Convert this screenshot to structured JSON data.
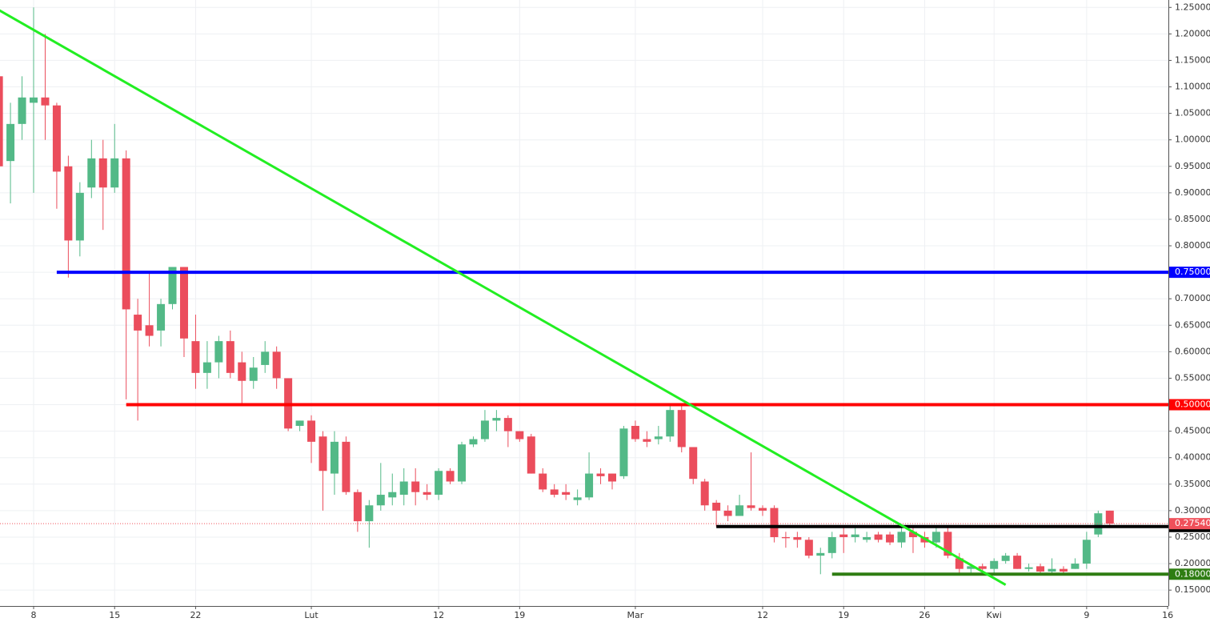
{
  "chart_data": {
    "type": "candlestick",
    "categories": [
      null,
      null,
      null,
      "8",
      null,
      null,
      null,
      null,
      null,
      null,
      "15",
      null,
      null,
      null,
      null,
      null,
      null,
      "22",
      null,
      null,
      null,
      null,
      null,
      null,
      null,
      null,
      null,
      "Lut",
      null,
      null,
      null,
      null,
      null,
      null,
      null,
      null,
      null,
      null,
      "12",
      null,
      null,
      null,
      null,
      null,
      null,
      "19",
      null,
      null,
      null,
      null,
      null,
      null,
      null,
      null,
      null,
      "Mar",
      null,
      null,
      null,
      null,
      null,
      null,
      null,
      null,
      null,
      null,
      "12",
      null,
      null,
      null,
      null,
      null,
      null,
      "19",
      null,
      null,
      null,
      null,
      null,
      null,
      "26",
      null,
      null,
      null,
      null,
      null,
      "Kwi",
      null,
      null,
      null,
      null,
      null,
      null,
      null,
      "9",
      null,
      null,
      null,
      null,
      null,
      null,
      "16"
    ],
    "open": [
      1.12,
      0.96,
      1.03,
      1.07,
      1.08,
      1.065,
      0.95,
      0.81,
      0.91,
      0.965,
      0.91,
      0.965,
      0.67,
      0.65,
      0.64,
      0.69,
      0.76,
      0.62,
      0.56,
      0.58,
      0.62,
      0.58,
      0.545,
      0.575,
      0.6,
      0.55,
      0.46,
      0.47,
      0.44,
      0.37,
      0.43,
      0.335,
      0.28,
      0.31,
      0.325,
      0.33,
      0.355,
      0.335,
      0.33,
      0.375,
      0.355,
      0.425,
      0.435,
      0.47,
      0.475,
      0.45,
      0.44,
      0.37,
      0.34,
      0.335,
      0.32,
      0.325,
      0.37,
      0.37,
      0.365,
      0.46,
      0.435,
      0.435,
      0.44,
      0.49,
      0.42,
      0.355,
      0.315,
      0.3,
      0.29,
      0.31,
      0.305,
      0.305,
      0.25,
      0.25,
      0.245,
      0.215,
      0.22,
      0.255,
      0.25,
      0.245,
      0.255,
      0.255,
      0.24,
      0.26,
      0.25,
      0.24,
      0.26,
      0.21,
      0.19,
      0.195,
      0.19,
      0.205,
      0.215,
      0.19,
      0.195,
      0.185,
      0.19,
      0.19,
      0.2,
      0.255,
      0.3,
      null,
      null,
      null,
      null,
      null
    ],
    "high": [
      1.12,
      1.07,
      1.12,
      1.25,
      1.2,
      1.07,
      0.97,
      0.92,
      1.0,
      1.0,
      1.03,
      0.98,
      0.7,
      0.75,
      0.7,
      0.76,
      0.76,
      0.67,
      0.62,
      0.63,
      0.64,
      0.6,
      0.59,
      0.62,
      0.61,
      0.55,
      0.47,
      0.48,
      0.45,
      0.45,
      0.44,
      0.34,
      0.32,
      0.39,
      0.37,
      0.38,
      0.38,
      0.35,
      0.38,
      0.38,
      0.43,
      0.44,
      0.49,
      0.49,
      0.48,
      0.45,
      0.445,
      0.38,
      0.35,
      0.35,
      0.34,
      0.41,
      0.38,
      0.37,
      0.46,
      0.47,
      0.45,
      0.46,
      0.5,
      0.5,
      0.42,
      0.36,
      0.32,
      0.31,
      0.33,
      0.41,
      0.31,
      0.31,
      0.26,
      0.26,
      0.25,
      0.23,
      0.26,
      0.27,
      0.27,
      0.26,
      0.26,
      0.26,
      0.27,
      0.27,
      0.26,
      0.27,
      0.27,
      0.22,
      0.2,
      0.2,
      0.21,
      0.22,
      0.22,
      0.2,
      0.2,
      0.21,
      0.195,
      0.21,
      0.26,
      0.3,
      0.3,
      null,
      null,
      null,
      null,
      null
    ],
    "low": [
      0.94,
      0.88,
      1.0,
      0.9,
      1.0,
      0.87,
      0.74,
      0.78,
      0.89,
      0.83,
      0.9,
      0.51,
      0.47,
      0.61,
      0.61,
      0.68,
      0.59,
      0.53,
      0.53,
      0.55,
      0.55,
      0.5,
      0.53,
      0.56,
      0.53,
      0.45,
      0.45,
      0.39,
      0.3,
      0.33,
      0.33,
      0.26,
      0.23,
      0.3,
      0.31,
      0.31,
      0.31,
      0.32,
      0.32,
      0.35,
      0.35,
      0.42,
      0.43,
      0.45,
      0.42,
      0.43,
      0.37,
      0.335,
      0.325,
      0.32,
      0.31,
      0.32,
      0.35,
      0.34,
      0.36,
      0.43,
      0.42,
      0.425,
      0.43,
      0.41,
      0.35,
      0.3,
      0.27,
      0.28,
      0.29,
      0.3,
      0.29,
      0.24,
      0.23,
      0.23,
      0.21,
      0.18,
      0.21,
      0.22,
      0.24,
      0.24,
      0.24,
      0.235,
      0.23,
      0.22,
      0.23,
      0.23,
      0.21,
      0.18,
      0.18,
      0.185,
      0.18,
      0.2,
      0.19,
      0.185,
      0.18,
      0.18,
      0.18,
      0.19,
      0.19,
      0.25,
      0.27,
      null,
      null,
      null,
      null,
      null
    ],
    "close": [
      0.95,
      1.03,
      1.08,
      1.08,
      1.065,
      0.94,
      0.81,
      0.9,
      0.965,
      0.91,
      0.965,
      0.68,
      0.64,
      0.63,
      0.69,
      0.76,
      0.625,
      0.56,
      0.58,
      0.62,
      0.56,
      0.545,
      0.57,
      0.6,
      0.55,
      0.455,
      0.47,
      0.43,
      0.375,
      0.43,
      0.335,
      0.28,
      0.31,
      0.33,
      0.335,
      0.355,
      0.335,
      0.33,
      0.375,
      0.355,
      0.425,
      0.435,
      0.47,
      0.475,
      0.45,
      0.435,
      0.37,
      0.34,
      0.33,
      0.33,
      0.325,
      0.37,
      0.365,
      0.355,
      0.455,
      0.435,
      0.43,
      0.44,
      0.49,
      0.42,
      0.36,
      0.31,
      0.3,
      0.29,
      0.31,
      0.305,
      0.3,
      0.25,
      0.248,
      0.245,
      0.215,
      0.22,
      0.25,
      0.25,
      0.255,
      0.25,
      0.245,
      0.24,
      0.26,
      0.25,
      0.24,
      0.26,
      0.215,
      0.19,
      0.195,
      0.19,
      0.205,
      0.215,
      0.19,
      0.193,
      0.185,
      0.19,
      0.185,
      0.2,
      0.245,
      0.295,
      0.2754,
      null,
      null,
      null,
      null,
      null
    ],
    "up_color": "#53b987",
    "down_color": "#eb4d5c",
    "ylim": [
      0.12,
      1.264
    ],
    "yticks": [
      {
        "value": 1.25,
        "label": "1.25000"
      },
      {
        "value": 1.2,
        "label": "1.20000"
      },
      {
        "value": 1.15,
        "label": "1.15000"
      },
      {
        "value": 1.1,
        "label": "1.10000"
      },
      {
        "value": 1.05,
        "label": "1.05000"
      },
      {
        "value": 1.0,
        "label": "1.00000"
      },
      {
        "value": 0.95,
        "label": "0.95000"
      },
      {
        "value": 0.9,
        "label": "0.90000"
      },
      {
        "value": 0.85,
        "label": "0.85000"
      },
      {
        "value": 0.8,
        "label": "0.80000"
      },
      {
        "value": 0.75,
        "label": "0.75000"
      },
      {
        "value": 0.7,
        "label": "0.70000"
      },
      {
        "value": 0.65,
        "label": "0.65000"
      },
      {
        "value": 0.6,
        "label": "0.60000"
      },
      {
        "value": 0.55,
        "label": "0.55000"
      },
      {
        "value": 0.5,
        "label": "0.50000"
      },
      {
        "value": 0.45,
        "label": "0.45000"
      },
      {
        "value": 0.4,
        "label": "0.40000"
      },
      {
        "value": 0.35,
        "label": "0.35000"
      },
      {
        "value": 0.3,
        "label": "0.30000"
      },
      {
        "value": 0.25,
        "label": "0.25000"
      },
      {
        "value": 0.2,
        "label": "0.20000"
      },
      {
        "value": 0.15,
        "label": "0.15000"
      }
    ],
    "grid": true,
    "levels": [
      {
        "value": 0.75,
        "label": "0.75000",
        "color": "#0000ff",
        "from": 5
      },
      {
        "value": 0.5,
        "label": "0.50000",
        "color": "#ff0000",
        "from": 11
      },
      {
        "value": 0.27,
        "label": "0.27000",
        "color": "#000000",
        "from": 62
      },
      {
        "value": 0.18,
        "label": "0.18000",
        "color": "#2e7d12",
        "from": 72
      }
    ],
    "last_price": {
      "value": 0.2754,
      "label": "0.27540",
      "color": "#f0505a"
    },
    "trendline": {
      "color": "#22ee22",
      "points": [
        [
          0,
          1.245
        ],
        [
          87,
          0.16
        ]
      ]
    }
  }
}
